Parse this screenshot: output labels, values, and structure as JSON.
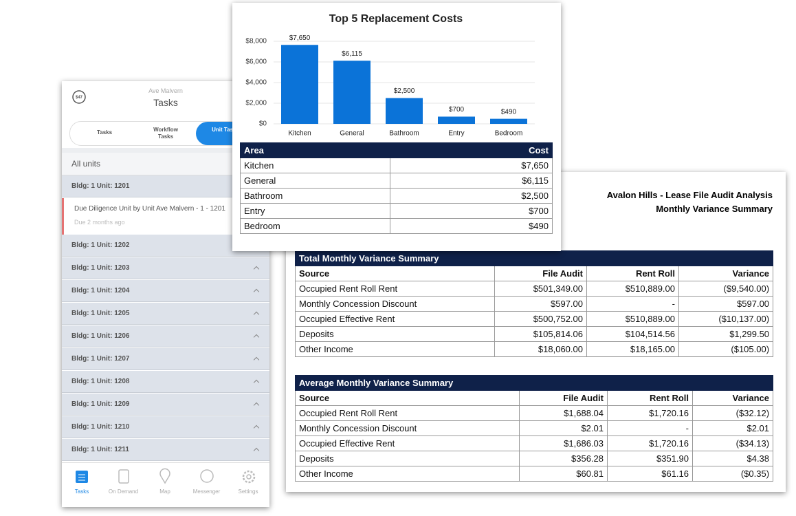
{
  "chart_data": {
    "type": "bar",
    "title": "Top 5 Replacement Costs",
    "categories": [
      "Kitchen",
      "General",
      "Bathroom",
      "Entry",
      "Bedroom"
    ],
    "values": [
      7650,
      6115,
      2500,
      700,
      490
    ],
    "value_labels": [
      "$7,650",
      "$6,115",
      "$2,500",
      "$700",
      "$490"
    ],
    "color": "#0b73d8",
    "ylim": [
      0,
      8000
    ],
    "yticks": [
      {
        "value": 0,
        "label": "$0"
      },
      {
        "value": 2000,
        "label": "$2,000"
      },
      {
        "value": 4000,
        "label": "$4,000"
      },
      {
        "value": 6000,
        "label": "$6,000"
      },
      {
        "value": 8000,
        "label": "$8,000"
      }
    ],
    "grid": true
  },
  "cost_table": {
    "columns": [
      "Area",
      "Cost"
    ],
    "rows": [
      [
        "Kitchen",
        "$7,650"
      ],
      [
        "General",
        "$6,115"
      ],
      [
        "Bathroom",
        "$2,500"
      ],
      [
        "Entry",
        "$700"
      ],
      [
        "Bedroom",
        "$490"
      ]
    ]
  },
  "app": {
    "badge": "$47",
    "location": "Ave Malvern",
    "title": "Tasks",
    "tabs": [
      "Tasks",
      "Workflow Tasks",
      "Unit Tasks"
    ],
    "filter": "All units",
    "units": [
      "Bldg: 1 Unit: 1201",
      "Bldg: 1 Unit: 1202",
      "Bldg: 1 Unit: 1203",
      "Bldg: 1 Unit: 1204",
      "Bldg: 1 Unit: 1205",
      "Bldg: 1 Unit: 1206",
      "Bldg: 1 Unit: 1207",
      "Bldg: 1 Unit: 1208",
      "Bldg: 1 Unit: 1209",
      "Bldg: 1 Unit: 1210",
      "Bldg: 1 Unit: 1211"
    ],
    "task": {
      "title": "Due Diligence Unit by Unit Ave Malvern - 1 - 1201",
      "due": "Due 2 months ago"
    },
    "nav": [
      "Tasks",
      "On Demand",
      "Map",
      "Messenger",
      "Settings"
    ]
  },
  "report": {
    "title": "Avalon Hills - Lease File Audit Analysis",
    "subtitle": "Monthly Variance Summary",
    "tables": [
      {
        "title": "Total Monthly Variance Summary",
        "columns": [
          "Source",
          "File Audit",
          "Rent Roll",
          "Variance"
        ],
        "rows": [
          [
            "Occupied Rent Roll Rent",
            "$501,349.00",
            "$510,889.00",
            "($9,540.00)"
          ],
          [
            "Monthly Concession Discount",
            "$597.00",
            "-",
            "$597.00"
          ],
          [
            "Occupied Effective Rent",
            "$500,752.00",
            "$510,889.00",
            "($10,137.00)"
          ],
          [
            "Deposits",
            "$105,814.06",
            "$104,514.56",
            "$1,299.50"
          ],
          [
            "Other Income",
            "$18,060.00",
            "$18,165.00",
            "($105.00)"
          ]
        ]
      },
      {
        "title": "Average Monthly Variance Summary",
        "columns": [
          "Source",
          "File Audit",
          "Rent Roll",
          "Variance"
        ],
        "rows": [
          [
            "Occupied Rent Roll Rent",
            "$1,688.04",
            "$1,720.16",
            "($32.12)"
          ],
          [
            "Monthly Concession Discount",
            "$2.01",
            "-",
            "$2.01"
          ],
          [
            "Occupied Effective Rent",
            "$1,686.03",
            "$1,720.16",
            "($34.13)"
          ],
          [
            "Deposits",
            "$356.28",
            "$351.90",
            "$4.38"
          ],
          [
            "Other Income",
            "$60.81",
            "$61.16",
            "($0.35)"
          ]
        ]
      }
    ]
  }
}
